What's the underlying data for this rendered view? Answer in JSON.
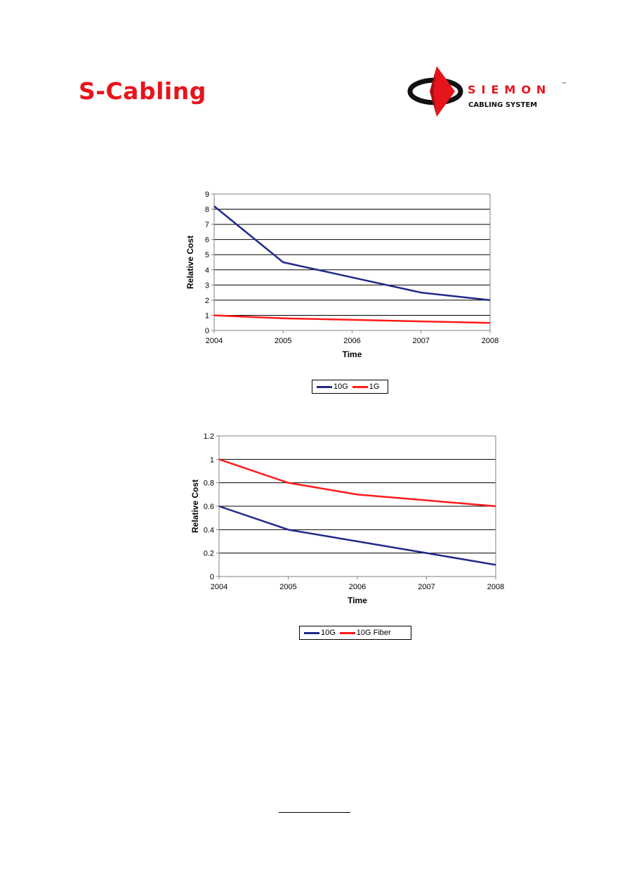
{
  "header": {
    "title": "S-Cabling",
    "logo": {
      "brand": "SIEMON",
      "trademark": "™",
      "subtitle": "CABLING SYSTEM"
    }
  },
  "colors": {
    "red": "#e8141b",
    "navy": "#1f2a8a",
    "series_red": "#ff1a1a"
  },
  "chart_data": [
    {
      "type": "line",
      "title": "",
      "xlabel": "Time",
      "ylabel": "Relative Cost",
      "x": [
        "2004",
        "2005",
        "2006",
        "2007",
        "2008"
      ],
      "ylim": [
        0,
        9
      ],
      "yticks": [
        "0",
        "1",
        "2",
        "3",
        "4",
        "5",
        "6",
        "7",
        "8",
        "9"
      ],
      "grid": true,
      "series": [
        {
          "name": "10G",
          "color": "#1f2a8a",
          "values": [
            8.2,
            4.5,
            3.5,
            2.5,
            2
          ]
        },
        {
          "name": "1G",
          "color": "#ff1a1a",
          "values": [
            1,
            0.8,
            0.7,
            0.6,
            0.5
          ]
        }
      ],
      "legend": "bottom"
    },
    {
      "type": "line",
      "title": "",
      "xlabel": "Time",
      "ylabel": "Relative Cost",
      "x": [
        "2004",
        "2005",
        "2006",
        "2007",
        "2008"
      ],
      "ylim": [
        0,
        1.2
      ],
      "yticks": [
        "0",
        "0.2",
        "0.4",
        "0.6",
        "0.8",
        "1",
        "1.2"
      ],
      "grid": true,
      "series": [
        {
          "name": "10G",
          "color": "#1f2a8a",
          "values": [
            0.6,
            0.4,
            0.3,
            0.2,
            0.1
          ]
        },
        {
          "name": "10G Fiber",
          "color": "#ff1a1a",
          "values": [
            1,
            0.8,
            0.7,
            0.65,
            0.6
          ]
        }
      ],
      "legend": "bottom"
    }
  ]
}
